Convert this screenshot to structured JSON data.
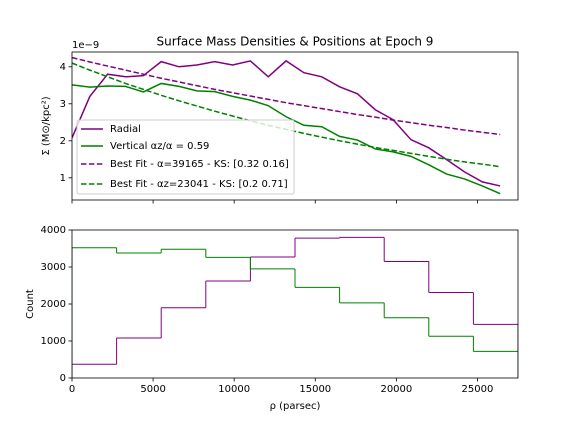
{
  "chart_data": [
    {
      "type": "line",
      "title": "Surface Mass Densities & Positions at Epoch 9",
      "offset_text": "1e−9",
      "ylabel": "Σ (M⊙/kpc²)",
      "xlim": [
        0,
        27500
      ],
      "ylim": [
        0.4,
        4.4
      ],
      "yticks": [
        1,
        2,
        3,
        4
      ],
      "legend": "lower left",
      "x": [
        0,
        1100,
        2200,
        3300,
        4400,
        5500,
        6600,
        7700,
        8800,
        9900,
        11000,
        12100,
        13200,
        14300,
        15400,
        16500,
        17600,
        18700,
        19800,
        20900,
        22000,
        23100,
        24200,
        25300,
        26400
      ],
      "series": [
        {
          "name": "Radial",
          "color": "#800080",
          "dash": false,
          "values": [
            2.08,
            3.2,
            3.8,
            3.73,
            3.76,
            4.14,
            4.0,
            4.05,
            4.14,
            4.05,
            4.16,
            3.73,
            4.16,
            3.84,
            3.73,
            3.46,
            3.27,
            2.84,
            2.57,
            2.03,
            1.81,
            1.49,
            1.16,
            0.89,
            0.78
          ]
        },
        {
          "name": "Vertical       αz/α = 0.59",
          "color": "#008000",
          "dash": false,
          "values": [
            3.51,
            3.45,
            3.48,
            3.47,
            3.32,
            3.55,
            3.47,
            3.35,
            3.33,
            3.2,
            3.1,
            2.95,
            2.65,
            2.42,
            2.38,
            2.12,
            2.02,
            1.78,
            1.7,
            1.58,
            1.35,
            1.1,
            0.97,
            0.78,
            0.57
          ]
        },
        {
          "name": "Best Fit - α=39165 - KS: [0.32 0.16]",
          "color": "#800080",
          "dash": true,
          "values": [
            4.25,
            4.13,
            4.02,
            3.91,
            3.8,
            3.69,
            3.59,
            3.49,
            3.39,
            3.3,
            3.21,
            3.12,
            3.03,
            2.95,
            2.87,
            2.79,
            2.71,
            2.64,
            2.56,
            2.49,
            2.42,
            2.36,
            2.29,
            2.23,
            2.17
          ]
        },
        {
          "name": "Best Fit - αz=23041 - KS: [0.2  0.71]",
          "color": "#008000",
          "dash": true,
          "values": [
            4.1,
            3.91,
            3.73,
            3.55,
            3.39,
            3.23,
            3.08,
            2.94,
            2.8,
            2.67,
            2.54,
            2.42,
            2.31,
            2.2,
            2.1,
            2.0,
            1.91,
            1.82,
            1.74,
            1.66,
            1.58,
            1.5,
            1.43,
            1.37,
            1.3
          ]
        }
      ]
    },
    {
      "type": "histogram",
      "xlabel": "ρ (parsec)",
      "ylabel": "Count",
      "xlim": [
        0,
        27500
      ],
      "xticks": [
        0,
        5000,
        10000,
        15000,
        20000,
        25000
      ],
      "ylim": [
        0,
        4000
      ],
      "yticks": [
        0,
        1000,
        2000,
        3000,
        4000
      ],
      "bins": [
        0,
        2750,
        5500,
        8250,
        11000,
        13750,
        16500,
        19250,
        22000,
        24750,
        27500
      ],
      "series": [
        {
          "color": "#800080",
          "values": [
            370,
            1080,
            1900,
            2620,
            3270,
            3780,
            3800,
            3150,
            2310,
            1450
          ]
        },
        {
          "color": "#008000",
          "values": [
            3520,
            3380,
            3480,
            3260,
            2950,
            2450,
            2030,
            1630,
            1130,
            720
          ]
        }
      ]
    }
  ]
}
